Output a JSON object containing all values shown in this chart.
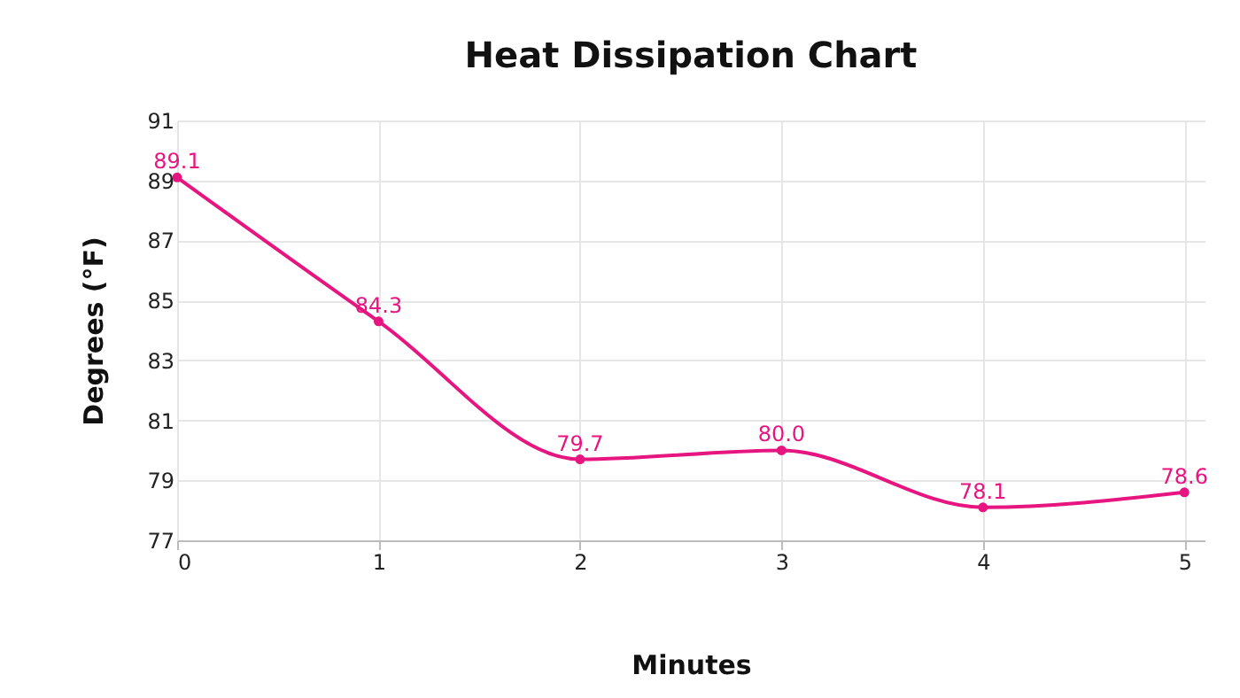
{
  "chart_data": {
    "type": "line",
    "title": "Heat Dissipation Chart",
    "xlabel": "Minutes",
    "ylabel": "Degrees (°F)",
    "x": [
      0,
      1,
      2,
      3,
      4,
      5
    ],
    "series": [
      {
        "color": "#e6157f",
        "values": [
          89.1,
          84.3,
          79.7,
          80.0,
          78.1,
          78.6
        ],
        "value_labels": [
          "89.1",
          "84.3",
          "79.7",
          "80.0",
          "78.1",
          "78.6"
        ]
      }
    ],
    "xlim": [
      0,
      5.1
    ],
    "xticks": [
      0,
      1,
      2,
      3,
      4,
      5
    ],
    "ylim": [
      77,
      91
    ],
    "yticks": [
      77,
      79,
      81,
      83,
      85,
      87,
      89,
      91
    ],
    "grid": true,
    "marker": "circle",
    "line_style": "solid"
  }
}
